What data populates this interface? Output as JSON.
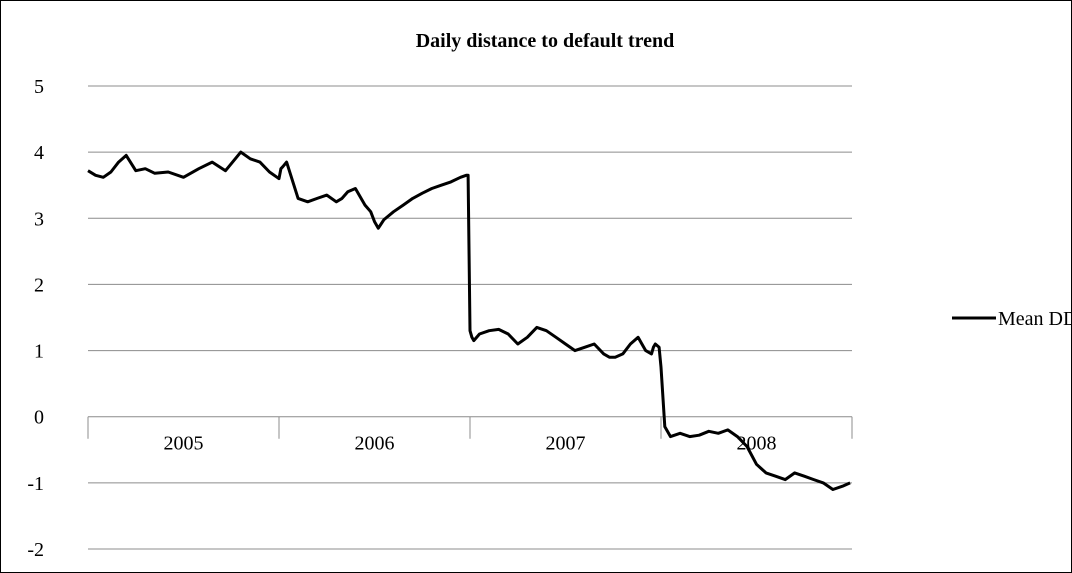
{
  "chart_data": {
    "type": "line",
    "title": "Daily distance to default trend",
    "xlabel": "",
    "ylabel": "",
    "ylim": [
      -2,
      5
    ],
    "yticks": [
      "-2",
      "-1",
      "0",
      "1",
      "2",
      "3",
      "4",
      "5"
    ],
    "grid": true,
    "legend_position": "right",
    "line_color": "#000000",
    "categories": [
      "2005",
      "2006",
      "2007",
      "2008"
    ],
    "series": [
      {
        "name": "Mean DD",
        "x": [
          2005.0,
          2005.04,
          2005.08,
          2005.12,
          2005.16,
          2005.2,
          2005.25,
          2005.3,
          2005.35,
          2005.42,
          2005.5,
          2005.58,
          2005.65,
          2005.72,
          2005.8,
          2005.85,
          2005.9,
          2005.95,
          2005.99,
          2006.0,
          2006.01,
          2006.02,
          2006.04,
          2006.1,
          2006.15,
          2006.2,
          2006.25,
          2006.3,
          2006.33,
          2006.36,
          2006.4,
          2006.45,
          2006.48,
          2006.5,
          2006.52,
          2006.55,
          2006.6,
          2006.65,
          2006.7,
          2006.75,
          2006.8,
          2006.85,
          2006.9,
          2006.95,
          2006.98,
          2006.99,
          2007.0,
          2007.01,
          2007.02,
          2007.05,
          2007.1,
          2007.15,
          2007.2,
          2007.25,
          2007.3,
          2007.35,
          2007.4,
          2007.45,
          2007.5,
          2007.55,
          2007.6,
          2007.65,
          2007.7,
          2007.73,
          2007.76,
          2007.8,
          2007.84,
          2007.88,
          2007.9,
          2007.92,
          2007.95,
          2007.96,
          2007.97,
          2007.99,
          2008.0,
          2008.02,
          2008.05,
          2008.1,
          2008.15,
          2008.2,
          2008.25,
          2008.3,
          2008.35,
          2008.4,
          2008.45,
          2008.5,
          2008.55,
          2008.6,
          2008.65,
          2008.7,
          2008.75,
          2008.8,
          2008.85,
          2008.9,
          2008.95,
          2008.99
        ],
        "values": [
          3.72,
          3.65,
          3.62,
          3.7,
          3.85,
          3.95,
          3.72,
          3.75,
          3.68,
          3.7,
          3.62,
          3.75,
          3.85,
          3.72,
          4.0,
          3.9,
          3.85,
          3.7,
          3.62,
          3.6,
          3.75,
          3.78,
          3.85,
          3.3,
          3.25,
          3.3,
          3.35,
          3.25,
          3.3,
          3.4,
          3.45,
          3.2,
          3.1,
          2.95,
          2.85,
          2.98,
          3.1,
          3.2,
          3.3,
          3.38,
          3.45,
          3.5,
          3.55,
          3.62,
          3.65,
          3.65,
          1.3,
          1.2,
          1.15,
          1.25,
          1.3,
          1.32,
          1.25,
          1.1,
          1.2,
          1.35,
          1.3,
          1.2,
          1.1,
          1.0,
          1.05,
          1.1,
          0.95,
          0.9,
          0.9,
          0.95,
          1.1,
          1.2,
          1.1,
          1.0,
          0.95,
          1.05,
          1.1,
          1.05,
          0.75,
          -0.15,
          -0.3,
          -0.25,
          -0.3,
          -0.28,
          -0.22,
          -0.25,
          -0.2,
          -0.3,
          -0.45,
          -0.72,
          -0.85,
          -0.9,
          -0.95,
          -0.85,
          -0.9,
          -0.95,
          -1.0,
          -1.1,
          -1.05,
          -1.0
        ]
      }
    ]
  }
}
